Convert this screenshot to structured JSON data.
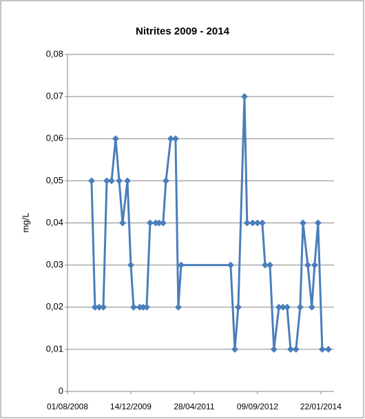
{
  "chart_data": {
    "type": "line",
    "title": "Nitrites 2009 - 2014",
    "y_label": "mg/L",
    "x": [
      "2009-02-07",
      "2009-03-06",
      "2009-04-08",
      "2009-05-11",
      "2009-06-07",
      "2009-07-15",
      "2009-08-16",
      "2009-09-13",
      "2009-10-10",
      "2009-11-17",
      "2009-12-14",
      "2010-01-05",
      "2010-02-23",
      "2010-03-22",
      "2010-04-18",
      "2010-05-15",
      "2010-06-28",
      "2010-07-25",
      "2010-08-26",
      "2010-09-17",
      "2010-10-25",
      "2010-12-02",
      "2010-12-24",
      "2011-01-15",
      "2012-02-10",
      "2012-03-14",
      "2012-04-10",
      "2012-05-29",
      "2012-06-19",
      "2012-08-02",
      "2012-09-09",
      "2012-10-17",
      "2012-11-08",
      "2012-12-16",
      "2013-01-17",
      "2013-02-25",
      "2013-03-29",
      "2013-05-01",
      "2013-05-28",
      "2013-07-10",
      "2013-08-12",
      "2013-09-03",
      "2013-10-11",
      "2013-11-12",
      "2013-12-04",
      "2013-12-31",
      "2014-02-02",
      "2014-03-23"
    ],
    "series": [
      {
        "name": "Nitrites",
        "color": "#4a7ebb",
        "values": [
          0.05,
          0.02,
          0.02,
          0.02,
          0.05,
          0.05,
          0.06,
          0.05,
          0.04,
          0.05,
          0.03,
          0.02,
          0.02,
          0.02,
          0.02,
          0.04,
          0.04,
          0.04,
          0.04,
          0.05,
          0.06,
          0.06,
          0.02,
          0.03,
          0.03,
          0.01,
          0.02,
          0.07,
          0.04,
          0.04,
          0.04,
          0.04,
          0.03,
          0.03,
          0.01,
          0.02,
          0.02,
          0.02,
          0.01,
          0.01,
          0.02,
          0.04,
          0.03,
          0.02,
          0.03,
          0.04,
          0.01,
          0.01
        ]
      }
    ],
    "xlim": [
      "2008-08-01",
      "2014-05-06"
    ],
    "xticks": [
      {
        "value": "2008-08-01",
        "label": "01/08/2008"
      },
      {
        "value": "2009-12-14",
        "label": "14/12/2009"
      },
      {
        "value": "2011-04-28",
        "label": "28/04/2011"
      },
      {
        "value": "2012-09-09",
        "label": "09/09/2012"
      },
      {
        "value": "2014-01-22",
        "label": "22/01/2014"
      }
    ],
    "ylim": [
      0,
      0.08
    ],
    "yticks": [
      0,
      {
        "value": 0.01,
        "label": "0,01"
      },
      {
        "value": 0.02,
        "label": "0,02"
      },
      {
        "value": 0.03,
        "label": "0,03"
      },
      {
        "value": 0.04,
        "label": "0,04"
      },
      {
        "value": 0.05,
        "label": "0,05"
      },
      {
        "value": 0.06,
        "label": "0,06"
      },
      {
        "value": 0.07,
        "label": "0,07"
      },
      {
        "value": 0.08,
        "label": "0,08"
      }
    ],
    "grid": true
  }
}
